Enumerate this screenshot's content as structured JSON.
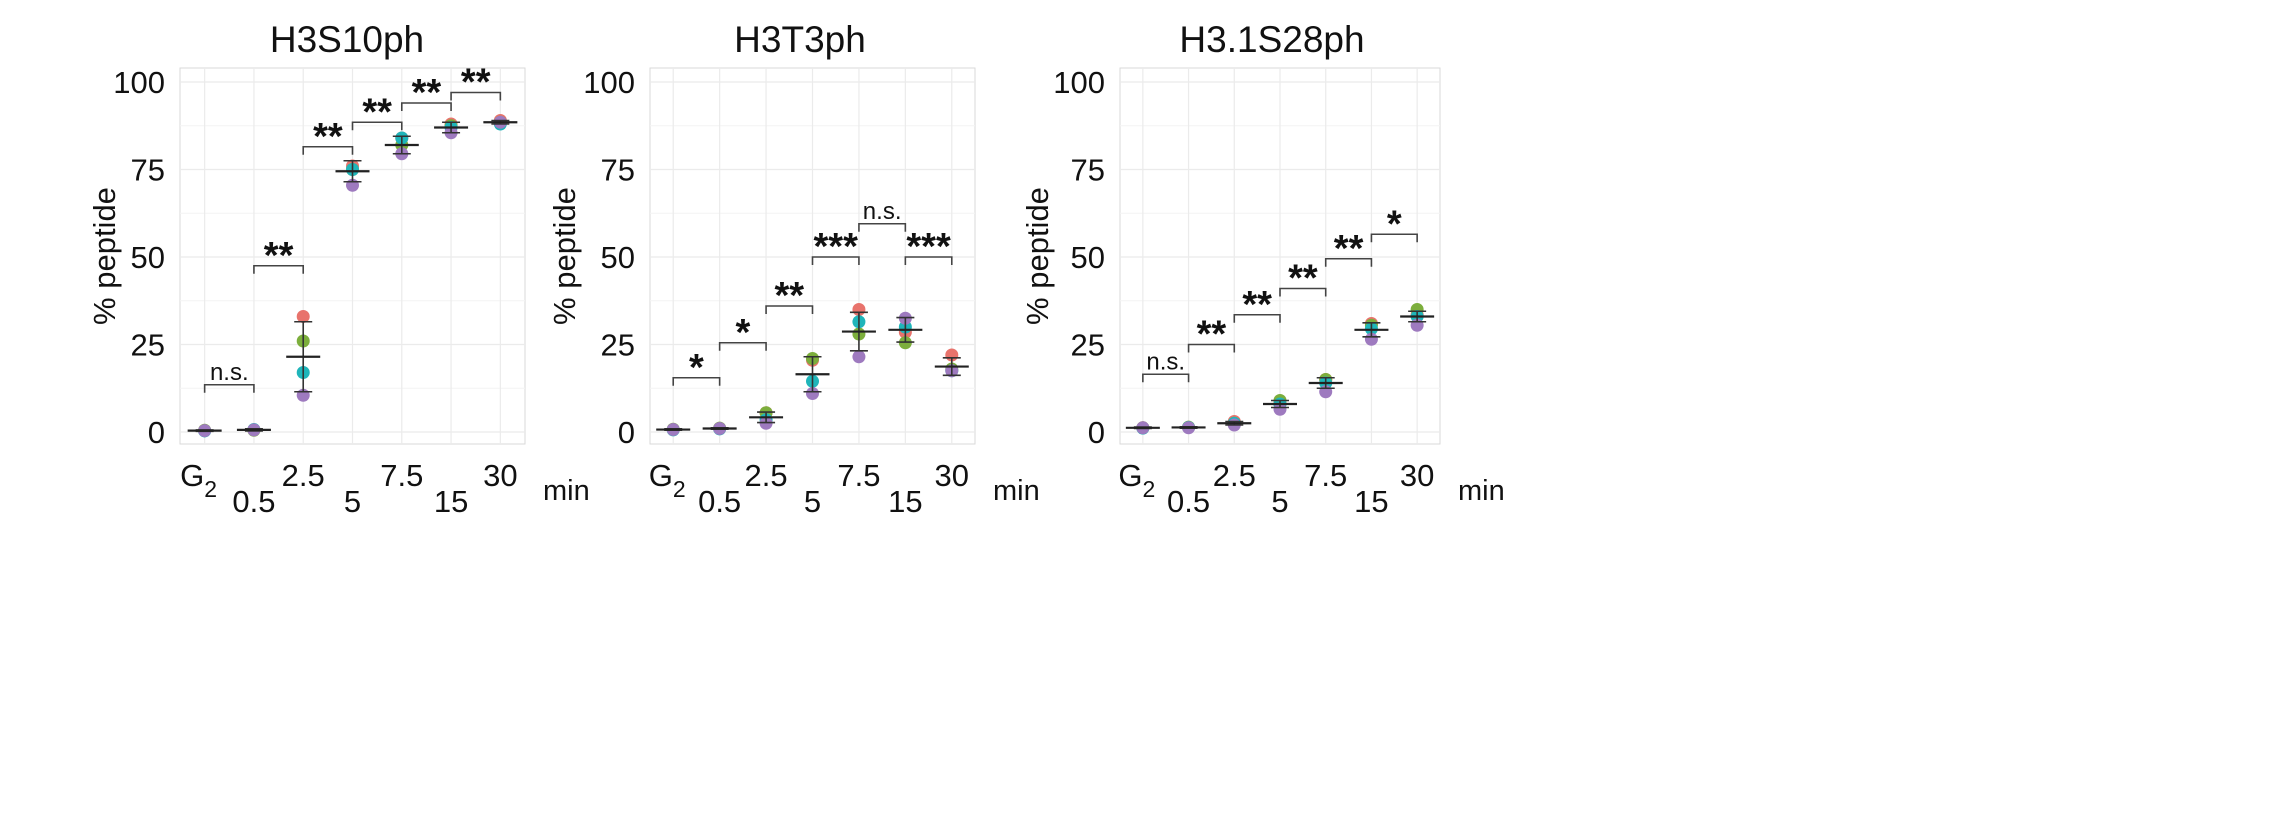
{
  "figure": {
    "x_tick_labels": [
      {
        "base": "G",
        "sub": "2"
      },
      {
        "base": "0.5",
        "sub": ""
      },
      {
        "base": "2.5",
        "sub": ""
      },
      {
        "base": "5",
        "sub": ""
      },
      {
        "base": "7.5",
        "sub": ""
      },
      {
        "base": "15",
        "sub": ""
      },
      {
        "base": "30",
        "sub": ""
      }
    ],
    "x_unit": "min",
    "y_label": "% peptide",
    "y_ticks": [
      0,
      25,
      50,
      75,
      100
    ],
    "replicate_colors": [
      "#E8736C",
      "#7CAE3C",
      "#1FB5BA",
      "#9E7ABF"
    ],
    "grid_color": "#ebebeb",
    "panel_border_color": "#d9d9d9"
  },
  "chart_data": [
    {
      "type": "scatter",
      "title": "H3S10ph",
      "ylabel": "% peptide",
      "ylim": [
        0,
        100
      ],
      "categories": [
        "G2",
        "0.5",
        "2.5",
        "5",
        "7.5",
        "15",
        "30"
      ],
      "points": [
        [
          0.4,
          0.5,
          0.3,
          0.4
        ],
        [
          0.6,
          0.5,
          0.7,
          0.6
        ],
        [
          33,
          26,
          17,
          10.5
        ],
        [
          76,
          75,
          75,
          70.5
        ],
        [
          84,
          82,
          84,
          79.5
        ],
        [
          88,
          87.5,
          87,
          85.5
        ],
        [
          89,
          88.5,
          88,
          88.5
        ]
      ],
      "mean": [
        0.4,
        0.6,
        21.5,
        74.5,
        82,
        87,
        88.5
      ],
      "error": [
        0.2,
        0.3,
        10,
        3,
        2.5,
        1.5,
        0.5
      ],
      "comparisons": [
        {
          "from": 0,
          "to": 1,
          "label": "n.s.",
          "y": 13.5
        },
        {
          "from": 1,
          "to": 2,
          "label": "**",
          "y": 47.5
        },
        {
          "from": 2,
          "to": 3,
          "label": "**",
          "y": 81.5
        },
        {
          "from": 3,
          "to": 4,
          "label": "**",
          "y": 88.5
        },
        {
          "from": 4,
          "to": 5,
          "label": "**",
          "y": 94
        },
        {
          "from": 5,
          "to": 6,
          "label": "**",
          "y": 97
        }
      ]
    },
    {
      "type": "scatter",
      "title": "H3T3ph",
      "ylabel": "% peptide",
      "ylim": [
        0,
        100
      ],
      "categories": [
        "G2",
        "0.5",
        "2.5",
        "5",
        "7.5",
        "15",
        "30"
      ],
      "points": [
        [
          0.7,
          0.8,
          0.6,
          0.7
        ],
        [
          1.0,
          1.1,
          0.9,
          1.0
        ],
        [
          5.5,
          5.5,
          3.5,
          2.5
        ],
        [
          20.5,
          21,
          14.5,
          11
        ],
        [
          35,
          28,
          31.5,
          21.5
        ],
        [
          28.5,
          25.5,
          30,
          32.5
        ],
        [
          22,
          18,
          17.5,
          17.5
        ]
      ],
      "mean": [
        0.7,
        1.0,
        4.2,
        16.5,
        28.7,
        29.2,
        18.7
      ],
      "error": [
        0.2,
        0.2,
        1.5,
        5,
        5.5,
        3.5,
        2.5
      ],
      "comparisons": [
        {
          "from": 0,
          "to": 1,
          "label": "*",
          "y": 15.5
        },
        {
          "from": 1,
          "to": 2,
          "label": "*",
          "y": 25.5
        },
        {
          "from": 2,
          "to": 3,
          "label": "**",
          "y": 36
        },
        {
          "from": 3,
          "to": 4,
          "label": "***",
          "y": 50
        },
        {
          "from": 4,
          "to": 5,
          "label": "n.s.",
          "y": 59.5
        },
        {
          "from": 5,
          "to": 6,
          "label": "***",
          "y": 50
        }
      ]
    },
    {
      "type": "scatter",
      "title": "H3.1S28ph",
      "ylabel": "% peptide",
      "ylim": [
        0,
        100
      ],
      "categories": [
        "G2",
        "0.5",
        "2.5",
        "5",
        "7.5",
        "15",
        "30"
      ],
      "points": [
        [
          1.2,
          1.2,
          1.1,
          1.2
        ],
        [
          1.3,
          1.4,
          1.3,
          1.2
        ],
        [
          3,
          2.5,
          2.5,
          2
        ],
        [
          8,
          9,
          8,
          6.5
        ],
        [
          15,
          15,
          14,
          11.5
        ],
        [
          31,
          30.5,
          29.5,
          26.5
        ],
        [
          33.5,
          35,
          33,
          30.5
        ]
      ],
      "mean": [
        1.2,
        1.3,
        2.5,
        8,
        14,
        29.2,
        33
      ],
      "error": [
        0.2,
        0.2,
        0.5,
        1,
        1.5,
        2,
        1.5
      ],
      "comparisons": [
        {
          "from": 0,
          "to": 1,
          "label": "n.s.",
          "y": 16.5
        },
        {
          "from": 1,
          "to": 2,
          "label": "**",
          "y": 25
        },
        {
          "from": 2,
          "to": 3,
          "label": "**",
          "y": 33.5
        },
        {
          "from": 3,
          "to": 4,
          "label": "**",
          "y": 41
        },
        {
          "from": 4,
          "to": 5,
          "label": "**",
          "y": 49.5
        },
        {
          "from": 5,
          "to": 6,
          "label": "*",
          "y": 56.5
        }
      ]
    }
  ]
}
